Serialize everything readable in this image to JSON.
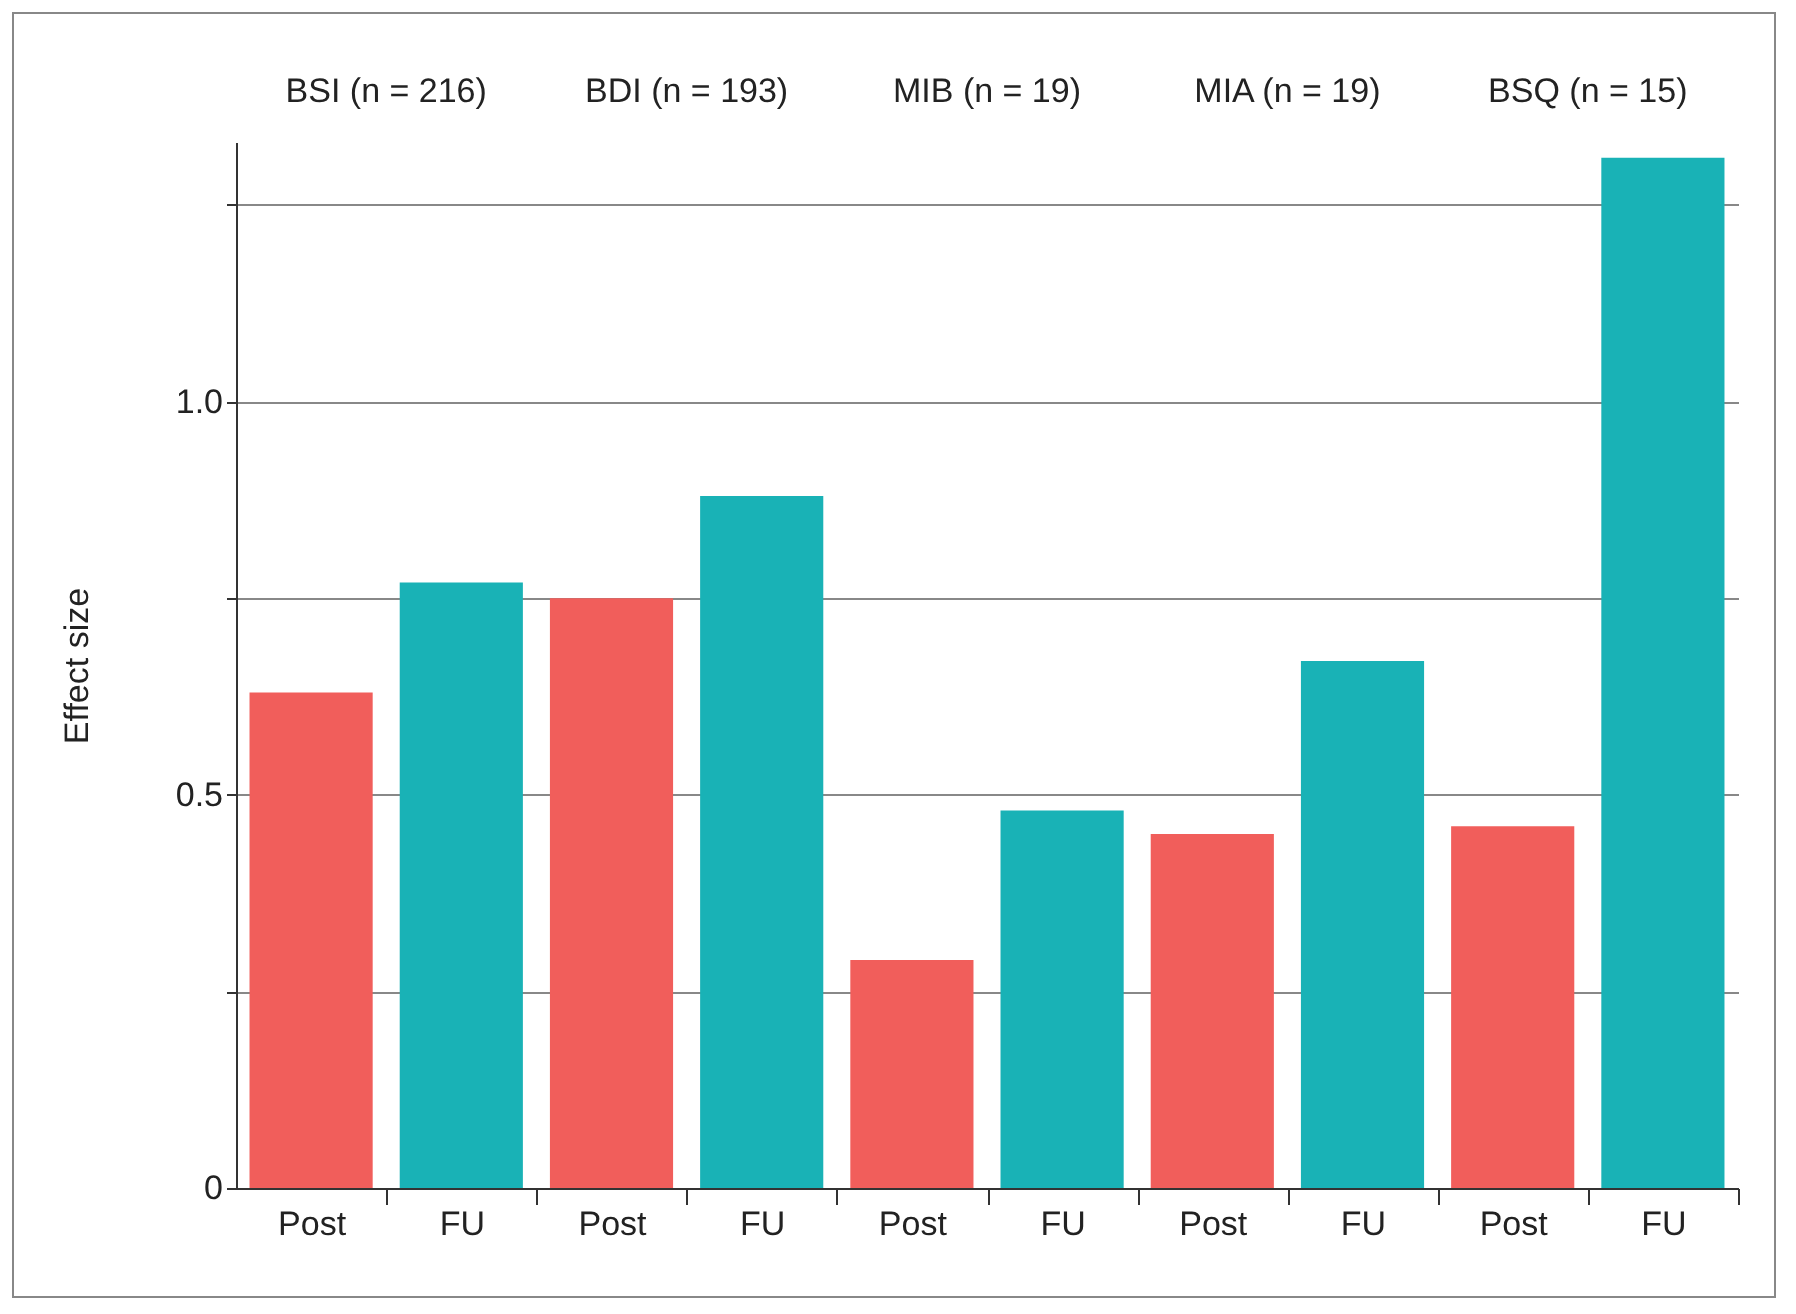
{
  "chart_data": {
    "type": "bar",
    "ylabel": "Effect size",
    "categories": [
      "Post",
      "FU",
      "Post",
      "FU",
      "Post",
      "FU",
      "Post",
      "FU",
      "Post",
      "FU"
    ],
    "values": [
      0.63,
      0.77,
      0.75,
      0.88,
      0.29,
      0.48,
      0.45,
      0.67,
      0.46,
      1.31
    ],
    "colors": [
      "#f15e5b",
      "#19b2b6",
      "#f15e5b",
      "#19b2b6",
      "#f15e5b",
      "#19b2b6",
      "#f15e5b",
      "#19b2b6",
      "#f15e5b",
      "#19b2b6"
    ],
    "ylim": [
      0,
      1.33
    ],
    "yticks": [
      0,
      {
        "value": 0.25,
        "label": null
      },
      0.5,
      {
        "value": 0.75,
        "label": null
      },
      {
        "value": 1.0,
        "label": "1.0"
      },
      {
        "value": 1.25,
        "label": null
      }
    ],
    "grid": "y",
    "annotations": [
      "BSI (n = 216)",
      "BDI (n = 193)",
      "MIB (n = 19)",
      "MIA (n = 19)",
      "BSQ (n = 15)"
    ]
  }
}
